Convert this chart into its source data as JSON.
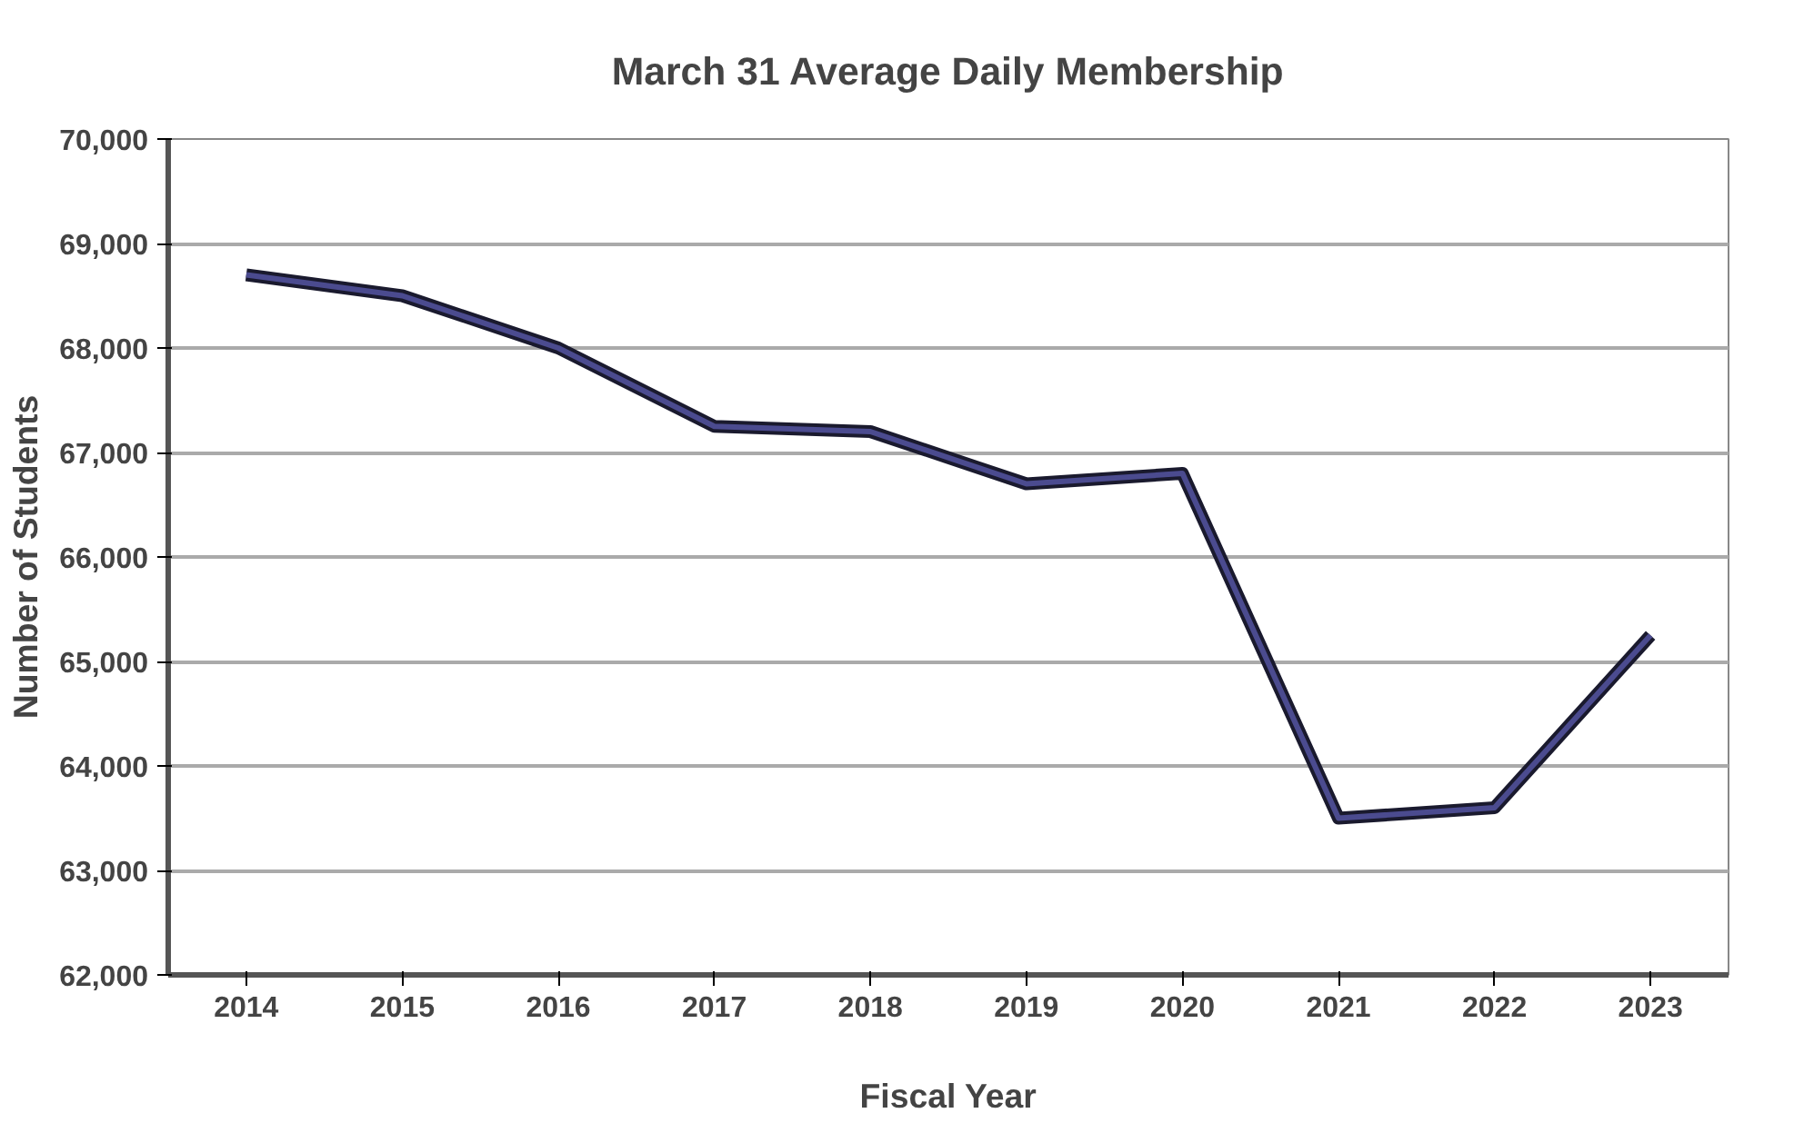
{
  "chart_data": {
    "type": "line",
    "title": "March 31 Average Daily Membership",
    "xlabel": "Fiscal Year",
    "ylabel": "Number of Students",
    "categories": [
      "2014",
      "2015",
      "2016",
      "2017",
      "2018",
      "2019",
      "2020",
      "2021",
      "2022",
      "2023"
    ],
    "series": [
      {
        "color": "#4b4b8f",
        "values": [
          68700,
          68500,
          68000,
          67250,
          67200,
          66700,
          66800,
          63500,
          63600,
          65250
        ]
      }
    ],
    "ylim": [
      62000,
      70000
    ],
    "yticks": [
      {
        "value": 62000,
        "label": "62,000"
      },
      {
        "value": 63000,
        "label": "63,000"
      },
      {
        "value": 64000,
        "label": "64,000"
      },
      {
        "value": 65000,
        "label": "65,000"
      },
      {
        "value": 66000,
        "label": "66,000"
      },
      {
        "value": 67000,
        "label": "67,000"
      },
      {
        "value": 68000,
        "label": "68,000"
      },
      {
        "value": 69000,
        "label": "69,000"
      },
      {
        "value": 70000,
        "label": "70,000"
      }
    ],
    "grid": "y",
    "marker": "none",
    "line_style": "solid"
  }
}
